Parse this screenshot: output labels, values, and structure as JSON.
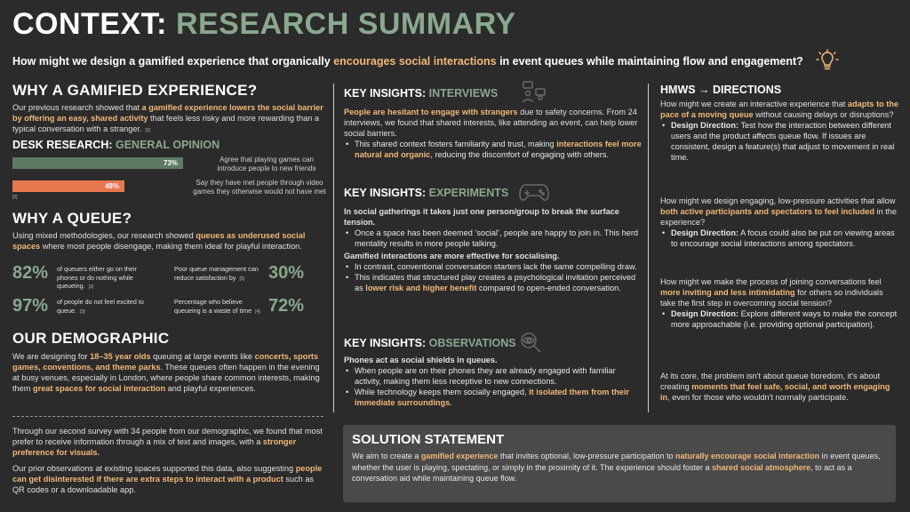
{
  "title": {
    "part1": "CONTEXT:",
    "part2": "RESEARCH SUMMARY"
  },
  "question": {
    "a": "How might we design a gamified experience that organically ",
    "b": "encourages social interactions",
    "c": " in event queues while maintaining flow and engagement?"
  },
  "gamified": {
    "heading": "WHY A GAMIFIED EXPERIENCE?",
    "p_a": "Our previous research showed that ",
    "p_b": "a gamified experience lowers the social barrier by offering an easy, shared activity",
    "p_c": " that feels less risky and more rewarding than a typical conversation with a stranger.",
    "ref": "[1]"
  },
  "desk": {
    "heading_a": "DESK RESEARCH: ",
    "heading_b": "GENERAL OPINION",
    "bar1": {
      "value": "73%",
      "pct": 73,
      "color": "#5e7a64",
      "label": "Agree that playing games can introduce people to new friends"
    },
    "bar2": {
      "value": "48%",
      "pct": 48,
      "color": "#e8784e",
      "label": "Say they have met people through video games they otherwise would not have met"
    },
    "ref": "[2]"
  },
  "queue": {
    "heading": "WHY A QUEUE?",
    "p_a": "Using mixed methodologies, our research showed ",
    "p_b": "queues as underused social spaces",
    "p_c": " where most people disengage, making them ideal for playful interaction.",
    "stats": [
      {
        "num": "82%",
        "text": "of queuers either go on their phones or do nothing while queueing.",
        "ref": "[3]"
      },
      {
        "num": "30%",
        "text": "Poor queue management can reduce satisfaction by",
        "ref": "[5]"
      },
      {
        "num": "97%",
        "text": "of people do not feel excited to queue.",
        "ref": "[3]"
      },
      {
        "num": "72%",
        "text": "Percentage who believe queueing is a waste of time",
        "ref": "[4]"
      }
    ]
  },
  "demographic": {
    "heading": "OUR DEMOGRAPHIC",
    "p1_a": "We are designing for ",
    "p1_b": "18–35 year olds",
    "p1_c": " queuing at large events like ",
    "p1_d": "concerts, sports games, conventions, and theme parks",
    "p1_e": ". These queues often happen in the evening at busy venues, especially in London, where people share common interests, making them ",
    "p1_f": "great spaces for social interaction",
    "p1_g": " and playful experiences.",
    "p2_a": "Through our second survey with 34 people from our demographic, we found that most prefer to receive information through a mix of text and images, with a ",
    "p2_b": "stronger preference for visuals.",
    "p3_a": "Our prior observations at existing spaces supported this data, also suggesting ",
    "p3_b": "people can get disinterested if there are extra steps to interact with a product",
    "p3_c": " such as QR codes or a downloadable app."
  },
  "interviews": {
    "heading_a": "KEY INSIGHTS: ",
    "heading_b": "INTERVIEWS",
    "lead": "People are hesitant to engage with strangers",
    "lead_rest": " due to safety concerns. From 24 interviews, we found that shared interests, like attending an event, can help lower social barriers.",
    "b1_a": "This shared context fosters familiarity and trust, making ",
    "b1_b": "interactions feel more natural and organic",
    "b1_c": ", reducing the discomfort of engaging with others."
  },
  "experiments": {
    "heading_a": "KEY INSIGHTS: ",
    "heading_b": "EXPERIMENTS",
    "lead": "In social gatherings it takes just one person/group to break the surface tension.",
    "b1": "Once a space has been deemed ‘social’, people are happy to join in. This herd mentality results in more people talking.",
    "lead2": "Gamified interactions are more effective for socialising.",
    "b2": "In contrast, conventional conversation starters lack the same compelling draw.",
    "b3_a": "This indicates that structured play creates a psychological invitation perceived as ",
    "b3_b": "lower risk and higher benefit",
    "b3_c": " compared to open-ended conversation."
  },
  "observations": {
    "heading_a": "KEY INSIGHTS: ",
    "heading_b": "OBSERVATIONS",
    "lead": "Phones act as social shields in queues.",
    "b1": "When people are on their phones they are already engaged with familiar activity, making them less receptive to new connections.",
    "b2_a": "While technology keeps them socially engaged, ",
    "b2_b": "it isolated them from their immediate surroundings",
    "b2_c": "."
  },
  "hmws": {
    "heading": "HMWS → DIRECTIONS",
    "q1_a": "How might we create an interactive experience that ",
    "q1_b": "adapts to the pace of a moving queue",
    "q1_c": " without causing delays or disruptions?",
    "d1_a": "Design Direction:",
    "d1_b": " Test how the interaction between different users and the product affects queue flow. If issues are consistent, design a feature(s) that adjust to movement in real time.",
    "q2_a": "How might we design engaging, low-pressure activities that allow ",
    "q2_b": "both active participants and spectators to feel included",
    "q2_c": " in the experience?",
    "d2_a": "Design Direction:",
    "d2_b": " A focus could also be put on viewing areas to encourage social interactions among spectators.",
    "q3_a": "How might we make the process of joining conversations feel ",
    "q3_b": "more inviting and less intimidating",
    "q3_c": " for others so individuals take the first step in overcoming social tension?",
    "d3_a": "Design Direction:",
    "d3_b": " Explore different ways to make the concept more approachable (i.e. providing optional participation).",
    "core_a": "At its core, the problem isn't about queue boredom, it's about creating ",
    "core_b": "moments that feel safe, social, and worth engaging in",
    "core_c": ", even for those who wouldn't normally participate."
  },
  "solution": {
    "heading": "SOLUTION STATEMENT",
    "a": "We aim to create a ",
    "b": "gamified experience",
    "c": " that invites optional, low-pressure participation to ",
    "d": "naturally encourage social interaction",
    "e": " in event queues, whether the user is playing, spectating, or simply in the proximity of it. The experience should foster a ",
    "f": "shared social atmosphere",
    "g": ", to act as a conversation aid while maintaining queue flow."
  }
}
